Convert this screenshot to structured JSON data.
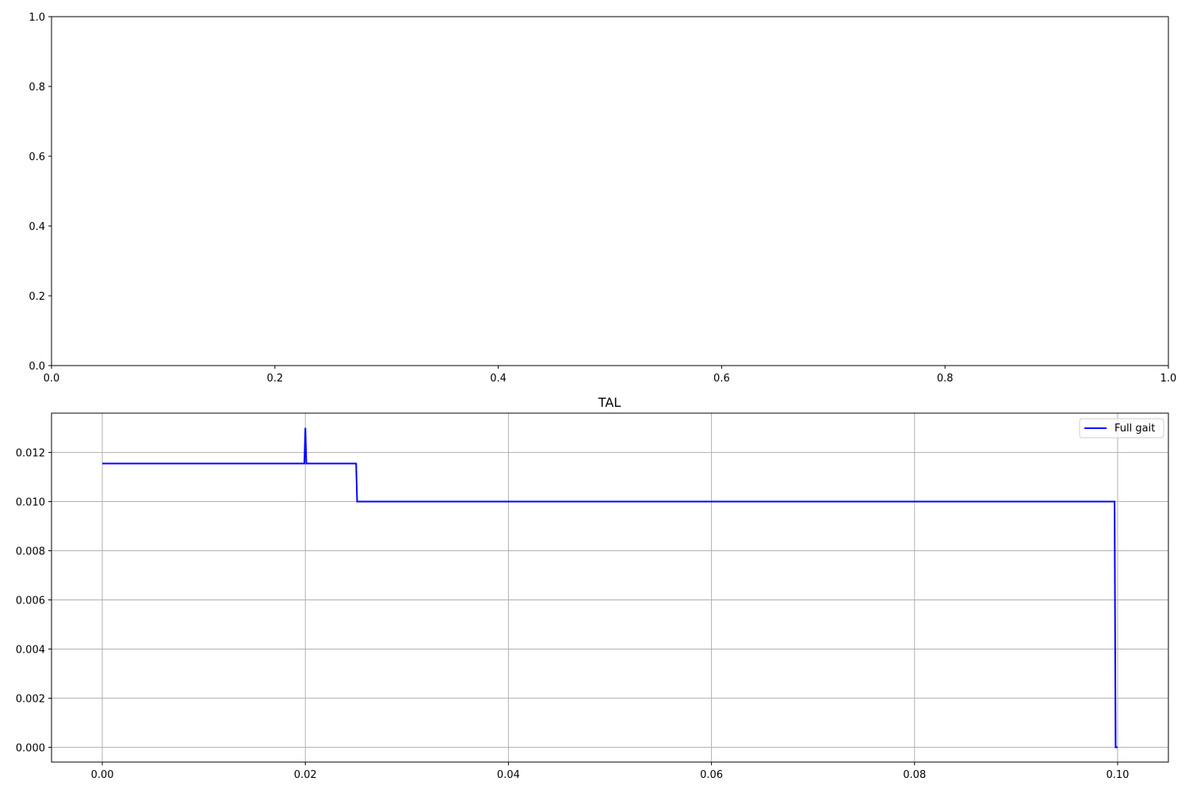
{
  "chart_data": [
    {
      "type": "line",
      "title": "",
      "xlabel": "",
      "ylabel": "",
      "xlim": [
        0.0,
        1.0
      ],
      "ylim": [
        0.0,
        1.0
      ],
      "x_ticks": [
        "0.0",
        "0.2",
        "0.4",
        "0.6",
        "0.8",
        "1.0"
      ],
      "y_ticks": [
        "0.0",
        "0.2",
        "0.4",
        "0.6",
        "0.8",
        "1.0"
      ],
      "grid": false,
      "series": []
    },
    {
      "type": "line",
      "title": "TAL",
      "xlabel": "",
      "ylabel": "",
      "xlim": [
        -0.005,
        0.105
      ],
      "ylim": [
        -0.0006,
        0.0136
      ],
      "x_ticks": [
        "0.00",
        "0.02",
        "0.04",
        "0.06",
        "0.08",
        "0.10"
      ],
      "y_ticks": [
        "0.000",
        "0.002",
        "0.004",
        "0.006",
        "0.008",
        "0.010",
        "0.012"
      ],
      "grid": true,
      "legend": {
        "position": "upper right"
      },
      "series": [
        {
          "name": "Full gait",
          "color": "#0000ff",
          "x": [
            0.0,
            0.0199,
            0.02,
            0.0201,
            0.025,
            0.0251,
            0.0997,
            0.0998,
            0.1
          ],
          "y": [
            0.01155,
            0.01155,
            0.013,
            0.01155,
            0.01155,
            0.01,
            0.01,
            0.0,
            0.0
          ]
        }
      ]
    }
  ]
}
